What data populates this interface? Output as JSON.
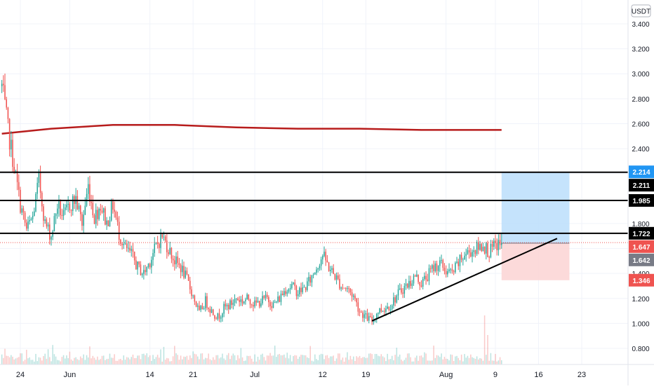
{
  "currency": "USDT",
  "colors": {
    "up": "#26a69a",
    "down": "#ef5350",
    "ma": "#b71c1c",
    "level": "#000000",
    "target_zone": "#bbdefb",
    "stop_zone": "#fcd6d6",
    "target_tag": "#2196f3",
    "stop_tag": "#ef5350",
    "current_tag": "#ef5350",
    "entry_tag": "#787b86"
  },
  "chart_data": {
    "type": "candlestick",
    "title": "",
    "xlabel": "",
    "ylabel": "USDT",
    "ylim": [
      0.7,
      3.5
    ],
    "y_ticks": [
      0.8,
      1.0,
      1.2,
      1.4,
      1.6,
      1.8,
      2.0,
      2.2,
      2.4,
      2.6,
      2.8,
      3.0,
      3.2,
      3.4
    ],
    "y_tick_labels": [
      "0.800",
      "1.000",
      "1.200",
      "1.400",
      "1.600",
      "1.800",
      "2.000",
      "2.200",
      "2.400",
      "2.600",
      "2.800",
      "3.000",
      "3.200",
      "3.400"
    ],
    "x_ticks": [
      {
        "label": "24",
        "day": 0
      },
      {
        "label": "Jun",
        "day": 8
      },
      {
        "label": "14",
        "day": 21
      },
      {
        "label": "21",
        "day": 28
      },
      {
        "label": "Jul",
        "day": 38
      },
      {
        "label": "12",
        "day": 49
      },
      {
        "label": "19",
        "day": 56
      },
      {
        "label": "Aug",
        "day": 69
      },
      {
        "label": "9",
        "day": 77
      },
      {
        "label": "16",
        "day": 84
      },
      {
        "label": "23",
        "day": 91
      }
    ],
    "x_range_days": [
      -3.3,
      98.5
    ],
    "price_series": [
      [
        -3,
        2.9
      ],
      [
        -2,
        2.55
      ],
      [
        -1,
        2.25
      ],
      [
        0,
        1.95
      ],
      [
        1,
        1.75
      ],
      [
        2,
        1.85
      ],
      [
        3,
        2.15
      ],
      [
        4,
        1.8
      ],
      [
        5,
        1.7
      ],
      [
        6,
        1.95
      ],
      [
        7,
        1.85
      ],
      [
        8,
        1.95
      ],
      [
        9,
        2.0
      ],
      [
        10,
        1.8
      ],
      [
        11,
        2.1
      ],
      [
        12,
        1.85
      ],
      [
        13,
        1.95
      ],
      [
        14,
        1.8
      ],
      [
        15,
        1.95
      ],
      [
        16,
        1.72
      ],
      [
        17,
        1.6
      ],
      [
        18,
        1.55
      ],
      [
        19,
        1.45
      ],
      [
        20,
        1.4
      ],
      [
        21,
        1.5
      ],
      [
        22,
        1.62
      ],
      [
        23,
        1.7
      ],
      [
        24,
        1.6
      ],
      [
        25,
        1.5
      ],
      [
        26,
        1.45
      ],
      [
        27,
        1.35
      ],
      [
        28,
        1.22
      ],
      [
        29,
        1.08
      ],
      [
        30,
        1.18
      ],
      [
        31,
        1.1
      ],
      [
        32,
        1.05
      ],
      [
        33,
        1.12
      ],
      [
        34,
        1.15
      ],
      [
        35,
        1.2
      ],
      [
        36,
        1.18
      ],
      [
        37,
        1.2
      ],
      [
        38,
        1.15
      ],
      [
        39,
        1.18
      ],
      [
        40,
        1.2
      ],
      [
        41,
        1.15
      ],
      [
        42,
        1.2
      ],
      [
        43,
        1.28
      ],
      [
        44,
        1.3
      ],
      [
        45,
        1.25
      ],
      [
        46,
        1.28
      ],
      [
        47,
        1.35
      ],
      [
        48,
        1.45
      ],
      [
        49,
        1.55
      ],
      [
        50,
        1.45
      ],
      [
        51,
        1.38
      ],
      [
        52,
        1.3
      ],
      [
        53,
        1.28
      ],
      [
        54,
        1.22
      ],
      [
        55,
        1.1
      ],
      [
        56,
        1.05
      ],
      [
        57,
        1.02
      ],
      [
        58,
        1.1
      ],
      [
        59,
        1.12
      ],
      [
        60,
        1.15
      ],
      [
        61,
        1.22
      ],
      [
        62,
        1.28
      ],
      [
        63,
        1.32
      ],
      [
        64,
        1.38
      ],
      [
        65,
        1.32
      ],
      [
        66,
        1.38
      ],
      [
        67,
        1.45
      ],
      [
        68,
        1.48
      ],
      [
        69,
        1.42
      ],
      [
        70,
        1.4
      ],
      [
        71,
        1.48
      ],
      [
        72,
        1.55
      ],
      [
        73,
        1.58
      ],
      [
        74,
        1.6
      ],
      [
        75,
        1.63
      ],
      [
        76,
        1.57
      ],
      [
        77,
        1.62
      ],
      [
        78,
        1.647
      ]
    ],
    "moving_average": [
      [
        -3,
        2.52
      ],
      [
        5,
        2.56
      ],
      [
        15,
        2.59
      ],
      [
        25,
        2.59
      ],
      [
        35,
        2.57
      ],
      [
        45,
        2.56
      ],
      [
        55,
        2.56
      ],
      [
        65,
        2.55
      ],
      [
        78,
        2.55
      ]
    ],
    "horizontal_levels": [
      2.211,
      1.985,
      1.722
    ],
    "trendline": {
      "from": [
        57,
        1.02
      ],
      "to": [
        87,
        1.68
      ]
    },
    "position": {
      "entry": 1.642,
      "target": 2.214,
      "stop": 1.346,
      "from_day": 78,
      "to_day": 89
    },
    "price_tags": [
      {
        "value": 2.214,
        "label": "2.214",
        "kind": "target"
      },
      {
        "value": 2.211,
        "label": "2.211",
        "kind": "level"
      },
      {
        "value": 1.985,
        "label": "1.985",
        "kind": "level"
      },
      {
        "value": 1.722,
        "label": "1.722",
        "kind": "level"
      },
      {
        "value": 1.647,
        "label": "1.647",
        "kind": "current"
      },
      {
        "value": 1.642,
        "label": "1.642",
        "kind": "entry"
      },
      {
        "value": 1.346,
        "label": "1.346",
        "kind": "stop"
      }
    ]
  }
}
